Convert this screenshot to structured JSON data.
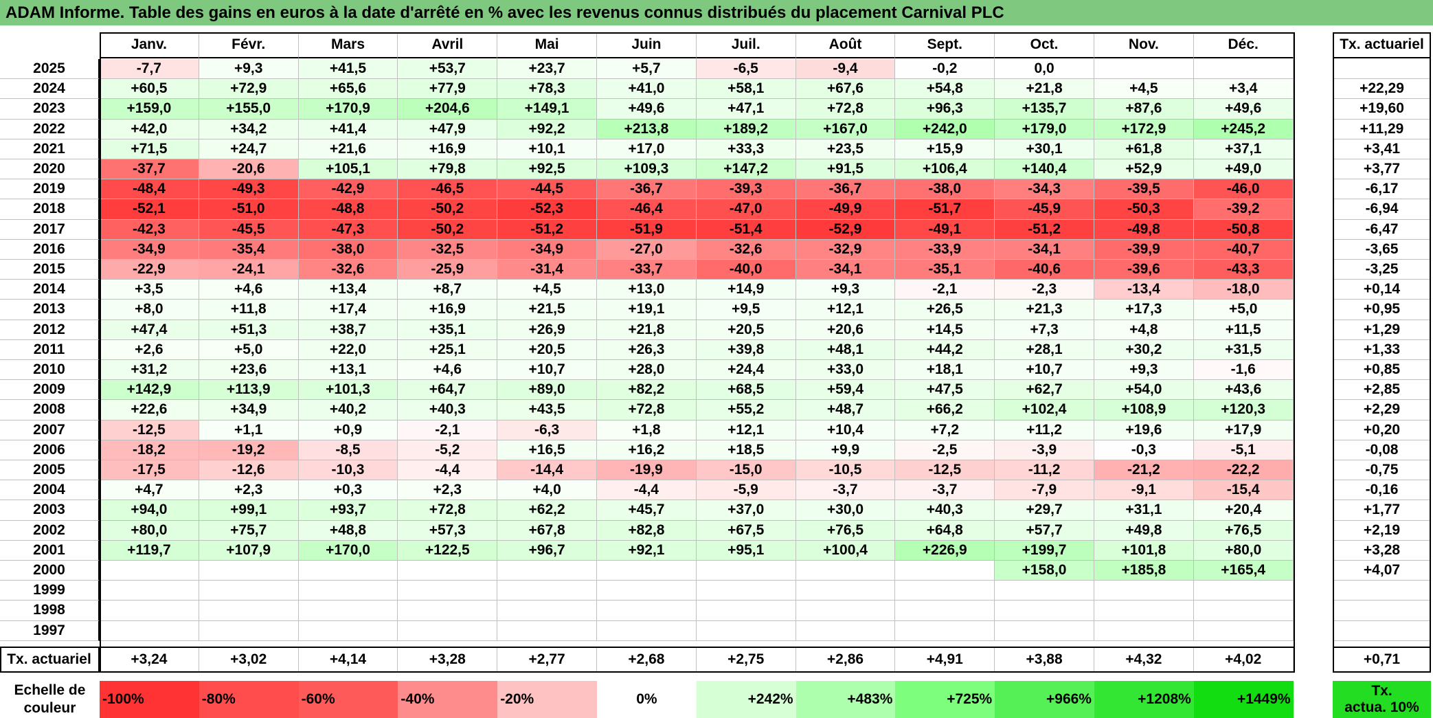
{
  "title": "ADAM Informe. Table des gains en euros à la date d'arrêté en % avec les revenus connus distribués du placement Carnival PLC",
  "months": [
    "Janv.",
    "Févr.",
    "Mars",
    "Avril",
    "Mai",
    "Juin",
    "Juil.",
    "Août",
    "Sept.",
    "Oct.",
    "Nov.",
    "Déc."
  ],
  "rate_header": "Tx. actuariel",
  "rows": [
    {
      "year": "2025",
      "values": [
        "-7,7",
        "+9,3",
        "+41,5",
        "+53,7",
        "+23,7",
        "+5,7",
        "-6,5",
        "-9,4",
        "-0,2",
        "0,0",
        "",
        ""
      ],
      "rate": ""
    },
    {
      "year": "2024",
      "values": [
        "+60,5",
        "+72,9",
        "+65,6",
        "+77,9",
        "+78,3",
        "+41,0",
        "+58,1",
        "+67,6",
        "+54,8",
        "+21,8",
        "+4,5",
        "+3,4"
      ],
      "rate": "+22,29"
    },
    {
      "year": "2023",
      "values": [
        "+159,0",
        "+155,0",
        "+170,9",
        "+204,6",
        "+149,1",
        "+49,6",
        "+47,1",
        "+72,8",
        "+96,3",
        "+135,7",
        "+87,6",
        "+49,6"
      ],
      "rate": "+19,60"
    },
    {
      "year": "2022",
      "values": [
        "+42,0",
        "+34,2",
        "+41,4",
        "+47,9",
        "+92,2",
        "+213,8",
        "+189,2",
        "+167,0",
        "+242,0",
        "+179,0",
        "+172,9",
        "+245,2"
      ],
      "rate": "+11,29"
    },
    {
      "year": "2021",
      "values": [
        "+71,5",
        "+24,7",
        "+21,6",
        "+16,9",
        "+10,1",
        "+17,0",
        "+33,3",
        "+23,5",
        "+15,9",
        "+30,1",
        "+61,8",
        "+37,1"
      ],
      "rate": "+3,41"
    },
    {
      "year": "2020",
      "values": [
        "-37,7",
        "-20,6",
        "+105,1",
        "+79,8",
        "+92,5",
        "+109,3",
        "+147,2",
        "+91,5",
        "+106,4",
        "+140,4",
        "+52,9",
        "+49,0"
      ],
      "rate": "+3,77"
    },
    {
      "year": "2019",
      "values": [
        "-48,4",
        "-49,3",
        "-42,9",
        "-46,5",
        "-44,5",
        "-36,7",
        "-39,3",
        "-36,7",
        "-38,0",
        "-34,3",
        "-39,5",
        "-46,0"
      ],
      "rate": "-6,17"
    },
    {
      "year": "2018",
      "values": [
        "-52,1",
        "-51,0",
        "-48,8",
        "-50,2",
        "-52,3",
        "-46,4",
        "-47,0",
        "-49,9",
        "-51,7",
        "-45,9",
        "-50,3",
        "-39,2"
      ],
      "rate": "-6,94"
    },
    {
      "year": "2017",
      "values": [
        "-42,3",
        "-45,5",
        "-47,3",
        "-50,2",
        "-51,2",
        "-51,9",
        "-51,4",
        "-52,9",
        "-49,1",
        "-51,2",
        "-49,8",
        "-50,8"
      ],
      "rate": "-6,47"
    },
    {
      "year": "2016",
      "values": [
        "-34,9",
        "-35,4",
        "-38,0",
        "-32,5",
        "-34,9",
        "-27,0",
        "-32,6",
        "-32,9",
        "-33,9",
        "-34,1",
        "-39,9",
        "-40,7"
      ],
      "rate": "-3,65"
    },
    {
      "year": "2015",
      "values": [
        "-22,9",
        "-24,1",
        "-32,6",
        "-25,9",
        "-31,4",
        "-33,7",
        "-40,0",
        "-34,1",
        "-35,1",
        "-40,6",
        "-39,6",
        "-43,3"
      ],
      "rate": "-3,25"
    },
    {
      "year": "2014",
      "values": [
        "+3,5",
        "+4,6",
        "+13,4",
        "+8,7",
        "+4,5",
        "+13,0",
        "+14,9",
        "+9,3",
        "-2,1",
        "-2,3",
        "-13,4",
        "-18,0"
      ],
      "rate": "+0,14"
    },
    {
      "year": "2013",
      "values": [
        "+8,0",
        "+11,8",
        "+17,4",
        "+16,9",
        "+21,5",
        "+19,1",
        "+9,5",
        "+12,1",
        "+26,5",
        "+21,3",
        "+17,3",
        "+5,0"
      ],
      "rate": "+0,95"
    },
    {
      "year": "2012",
      "values": [
        "+47,4",
        "+51,3",
        "+38,7",
        "+35,1",
        "+26,9",
        "+21,8",
        "+20,5",
        "+20,6",
        "+14,5",
        "+7,3",
        "+4,8",
        "+11,5"
      ],
      "rate": "+1,29"
    },
    {
      "year": "2011",
      "values": [
        "+2,6",
        "+5,0",
        "+22,0",
        "+25,1",
        "+20,5",
        "+26,3",
        "+39,8",
        "+48,1",
        "+44,2",
        "+28,1",
        "+30,2",
        "+31,5"
      ],
      "rate": "+1,33"
    },
    {
      "year": "2010",
      "values": [
        "+31,2",
        "+23,6",
        "+13,1",
        "+4,6",
        "+10,7",
        "+28,0",
        "+24,4",
        "+33,0",
        "+18,1",
        "+10,7",
        "+9,3",
        "-1,6"
      ],
      "rate": "+0,85"
    },
    {
      "year": "2009",
      "values": [
        "+142,9",
        "+113,9",
        "+101,3",
        "+64,7",
        "+89,0",
        "+82,2",
        "+68,5",
        "+59,4",
        "+47,5",
        "+62,7",
        "+54,0",
        "+43,6"
      ],
      "rate": "+2,85"
    },
    {
      "year": "2008",
      "values": [
        "+22,6",
        "+34,9",
        "+40,2",
        "+40,3",
        "+43,5",
        "+72,8",
        "+55,2",
        "+48,7",
        "+66,2",
        "+102,4",
        "+108,9",
        "+120,3"
      ],
      "rate": "+2,29"
    },
    {
      "year": "2007",
      "values": [
        "-12,5",
        "+1,1",
        "+0,9",
        "-2,1",
        "-6,3",
        "+1,8",
        "+12,1",
        "+10,4",
        "+7,2",
        "+11,2",
        "+19,6",
        "+17,9"
      ],
      "rate": "+0,20"
    },
    {
      "year": "2006",
      "values": [
        "-18,2",
        "-19,2",
        "-8,5",
        "-5,2",
        "+16,5",
        "+16,2",
        "+18,5",
        "+9,9",
        "-2,5",
        "-3,9",
        "-0,3",
        "-5,1"
      ],
      "rate": "-0,08"
    },
    {
      "year": "2005",
      "values": [
        "-17,5",
        "-12,6",
        "-10,3",
        "-4,4",
        "-14,4",
        "-19,9",
        "-15,0",
        "-10,5",
        "-12,5",
        "-11,2",
        "-21,2",
        "-22,2"
      ],
      "rate": "-0,75"
    },
    {
      "year": "2004",
      "values": [
        "+4,7",
        "+2,3",
        "+0,3",
        "+2,3",
        "+4,0",
        "-4,4",
        "-5,9",
        "-3,7",
        "-3,7",
        "-7,9",
        "-9,1",
        "-15,4"
      ],
      "rate": "-0,16"
    },
    {
      "year": "2003",
      "values": [
        "+94,0",
        "+99,1",
        "+93,7",
        "+72,8",
        "+62,2",
        "+45,7",
        "+37,0",
        "+30,0",
        "+40,3",
        "+29,7",
        "+31,1",
        "+20,4"
      ],
      "rate": "+1,77"
    },
    {
      "year": "2002",
      "values": [
        "+80,0",
        "+75,7",
        "+48,8",
        "+57,3",
        "+67,8",
        "+82,8",
        "+67,5",
        "+76,5",
        "+64,8",
        "+57,7",
        "+49,8",
        "+76,5"
      ],
      "rate": "+2,19"
    },
    {
      "year": "2001",
      "values": [
        "+119,7",
        "+107,9",
        "+170,0",
        "+122,5",
        "+96,7",
        "+92,1",
        "+95,1",
        "+100,4",
        "+226,9",
        "+199,7",
        "+101,8",
        "+80,0"
      ],
      "rate": "+3,28"
    },
    {
      "year": "2000",
      "values": [
        "",
        "",
        "",
        "",
        "",
        "",
        "",
        "",
        "",
        "+158,0",
        "+185,8",
        "+165,4"
      ],
      "rate": "+4,07"
    },
    {
      "year": "1999",
      "values": [
        "",
        "",
        "",
        "",
        "",
        "",
        "",
        "",
        "",
        "",
        "",
        ""
      ],
      "rate": ""
    },
    {
      "year": "1998",
      "values": [
        "",
        "",
        "",
        "",
        "",
        "",
        "",
        "",
        "",
        "",
        "",
        ""
      ],
      "rate": ""
    },
    {
      "year": "1997",
      "values": [
        "",
        "",
        "",
        "",
        "",
        "",
        "",
        "",
        "",
        "",
        "",
        ""
      ],
      "rate": ""
    }
  ],
  "footer": {
    "label": "Tx. actuariel",
    "values": [
      "+3,24",
      "+3,02",
      "+4,14",
      "+3,28",
      "+2,77",
      "+2,68",
      "+2,75",
      "+2,86",
      "+4,91",
      "+3,88",
      "+4,32",
      "+4,02"
    ],
    "rate": "+0,71"
  },
  "scale": {
    "label_line1": "Echelle de",
    "label_line2": "couleur",
    "items": [
      {
        "text": "-100%",
        "color": "#ff3333"
      },
      {
        "text": "-80%",
        "color": "#ff4d4d"
      },
      {
        "text": "-60%",
        "color": "#ff5a5a"
      },
      {
        "text": "-40%",
        "color": "#ff8c8c"
      },
      {
        "text": "-20%",
        "color": "#ffc2c2"
      },
      {
        "text": "0%",
        "color": "#ffffff"
      },
      {
        "text": "+242%",
        "color": "#d6ffd6"
      },
      {
        "text": "+483%",
        "color": "#adffad"
      },
      {
        "text": "+725%",
        "color": "#7dff7d"
      },
      {
        "text": "+966%",
        "color": "#55f055"
      },
      {
        "text": "+1208%",
        "color": "#33e633"
      },
      {
        "text": "+1449%",
        "color": "#11dd11"
      }
    ],
    "rate_line1": "Tx.",
    "rate_line2": "actua. 10%",
    "rate_color": "#22dd22"
  }
}
